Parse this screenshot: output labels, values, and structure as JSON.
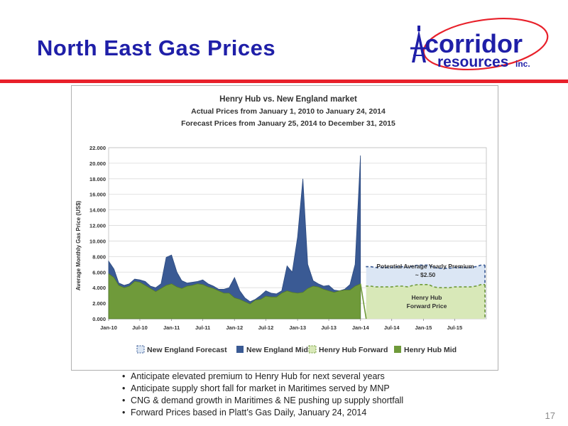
{
  "slide": {
    "title": "North East Gas Prices",
    "logo_main": "corridor",
    "logo_sub": "resources",
    "logo_suffix": "inc.",
    "bullets": [
      "Anticipate elevated premium to Henry Hub for next several years",
      "Anticipate supply short fall for market in Maritimes served by MNP",
      "CNG & demand growth in Maritimes  & NE pushing up supply shortfall",
      "Forward Prices based in Platt’s Gas Daily, January 24, 2014"
    ],
    "page_number": "17"
  },
  "colors": {
    "title": "#1f1fa8",
    "accent_red": "#e8202a",
    "new_england": "#3a5a94",
    "henry_hub": "#6f9a3a",
    "forecast_fill": "#dbe6f4",
    "forward_fill": "#d8e8b8"
  },
  "chart_data": {
    "type": "area",
    "title": "Henry Hub vs. New England market",
    "subtitle_1": "Actual Prices from January 1, 2010 to January 24, 2014",
    "subtitle_2": "Forecast Prices from January 25, 2014 to December 31, 2015",
    "ylabel": "Average Monthly Gas Price (US$)",
    "ylim": [
      0,
      22
    ],
    "y_ticks": [
      "0.000",
      "2.000",
      "4.000",
      "6.000",
      "8.000",
      "10.000",
      "12.000",
      "14.000",
      "16.000",
      "18.000",
      "20.000",
      "22.000"
    ],
    "x_ticks": [
      "Jan-10",
      "Jul-10",
      "Jan-11",
      "Jul-11",
      "Jan-12",
      "Jul-12",
      "Jan-13",
      "Jul-13",
      "Jan-14",
      "Jul-14",
      "Jan-15",
      "Jul-15"
    ],
    "legend": [
      "New England Forecast",
      "New England Mid",
      "Henry Hub Forward",
      "Henry Hub Mid"
    ],
    "legend_position": "bottom",
    "grid": true,
    "series": [
      {
        "name": "New England Mid",
        "x": [
          "2010-01",
          "2010-02",
          "2010-03",
          "2010-04",
          "2010-05",
          "2010-06",
          "2010-07",
          "2010-08",
          "2010-09",
          "2010-10",
          "2010-11",
          "2010-12",
          "2011-01",
          "2011-02",
          "2011-03",
          "2011-04",
          "2011-05",
          "2011-06",
          "2011-07",
          "2011-08",
          "2011-09",
          "2011-10",
          "2011-11",
          "2011-12",
          "2012-01",
          "2012-02",
          "2012-03",
          "2012-04",
          "2012-05",
          "2012-06",
          "2012-07",
          "2012-08",
          "2012-09",
          "2012-10",
          "2012-11",
          "2012-12",
          "2013-01",
          "2013-02",
          "2013-03",
          "2013-04",
          "2013-05",
          "2013-06",
          "2013-07",
          "2013-08",
          "2013-09",
          "2013-10",
          "2013-11",
          "2013-12",
          "2014-01"
        ],
        "values": [
          7.4,
          6.4,
          4.6,
          4.3,
          4.5,
          5.1,
          5.0,
          4.8,
          4.2,
          4.0,
          4.5,
          7.9,
          8.2,
          6.0,
          4.9,
          4.6,
          4.7,
          4.8,
          5.0,
          4.5,
          4.2,
          3.8,
          3.8,
          4.0,
          5.3,
          3.6,
          2.7,
          2.2,
          2.5,
          3.0,
          3.6,
          3.3,
          3.2,
          3.6,
          6.8,
          6.0,
          10.5,
          18.0,
          7.0,
          4.9,
          4.5,
          4.2,
          4.3,
          3.7,
          3.6,
          3.8,
          4.4,
          7.0,
          21.0
        ]
      },
      {
        "name": "Henry Hub Mid",
        "x": [
          "2010-01",
          "2010-02",
          "2010-03",
          "2010-04",
          "2010-05",
          "2010-06",
          "2010-07",
          "2010-08",
          "2010-09",
          "2010-10",
          "2010-11",
          "2010-12",
          "2011-01",
          "2011-02",
          "2011-03",
          "2011-04",
          "2011-05",
          "2011-06",
          "2011-07",
          "2011-08",
          "2011-09",
          "2011-10",
          "2011-11",
          "2011-12",
          "2012-01",
          "2012-02",
          "2012-03",
          "2012-04",
          "2012-05",
          "2012-06",
          "2012-07",
          "2012-08",
          "2012-09",
          "2012-10",
          "2012-11",
          "2012-12",
          "2013-01",
          "2013-02",
          "2013-03",
          "2013-04",
          "2013-05",
          "2013-06",
          "2013-07",
          "2013-08",
          "2013-09",
          "2013-10",
          "2013-11",
          "2013-12",
          "2014-01"
        ],
        "values": [
          5.8,
          5.3,
          4.3,
          4.0,
          4.2,
          4.8,
          4.7,
          4.3,
          3.9,
          3.5,
          3.9,
          4.3,
          4.5,
          4.1,
          3.9,
          4.2,
          4.3,
          4.5,
          4.4,
          4.1,
          3.9,
          3.6,
          3.3,
          3.3,
          2.7,
          2.5,
          2.2,
          1.9,
          2.4,
          2.5,
          2.9,
          2.8,
          2.8,
          3.3,
          3.6,
          3.4,
          3.3,
          3.4,
          3.9,
          4.2,
          4.1,
          3.8,
          3.6,
          3.4,
          3.6,
          3.7,
          3.7,
          4.2,
          4.5
        ]
      },
      {
        "name": "New England Forecast",
        "x": [
          "2014-01",
          "2014-02",
          "2014-03",
          "2014-04",
          "2014-05",
          "2014-06",
          "2014-07",
          "2014-08",
          "2014-09",
          "2014-10",
          "2014-11",
          "2014-12",
          "2015-01",
          "2015-02",
          "2015-03",
          "2015-04",
          "2015-05",
          "2015-06",
          "2015-07",
          "2015-08",
          "2015-09",
          "2015-10",
          "2015-11",
          "2015-12"
        ],
        "values": [
          6.7,
          6.7,
          6.7,
          6.6,
          6.6,
          6.6,
          6.6,
          6.7,
          6.7,
          6.6,
          6.8,
          6.9,
          6.9,
          6.9,
          6.6,
          6.5,
          6.5,
          6.5,
          6.6,
          6.6,
          6.6,
          6.6,
          6.7,
          6.9
        ]
      },
      {
        "name": "Henry Hub Forward",
        "x": [
          "2014-01",
          "2014-02",
          "2014-03",
          "2014-04",
          "2014-05",
          "2014-06",
          "2014-07",
          "2014-08",
          "2014-09",
          "2014-10",
          "2014-11",
          "2014-12",
          "2015-01",
          "2015-02",
          "2015-03",
          "2015-04",
          "2015-05",
          "2015-06",
          "2015-07",
          "2015-08",
          "2015-09",
          "2015-10",
          "2015-11",
          "2015-12"
        ],
        "values": [
          4.2,
          4.2,
          4.2,
          4.1,
          4.1,
          4.1,
          4.1,
          4.2,
          4.2,
          4.1,
          4.3,
          4.4,
          4.4,
          4.4,
          4.1,
          4.0,
          4.0,
          4.0,
          4.1,
          4.1,
          4.1,
          4.1,
          4.2,
          4.4
        ]
      }
    ],
    "annotations": [
      {
        "text_1": "Potential Average Yearly Premium",
        "text_2": "~ $2.50"
      },
      {
        "text_1": "Henry Hub",
        "text_2": "Forward Price"
      }
    ]
  }
}
